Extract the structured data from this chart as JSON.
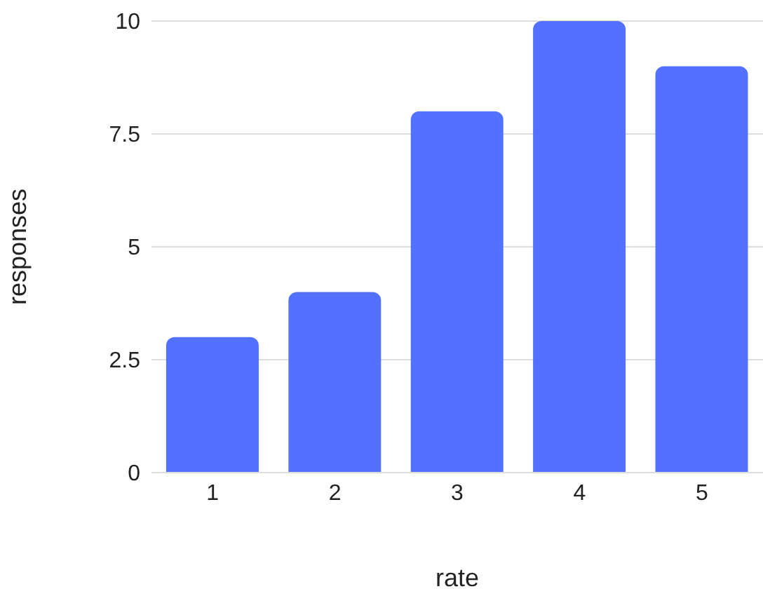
{
  "chart_data": {
    "type": "bar",
    "xlabel": "rate",
    "ylabel": "responses",
    "categories": [
      "1",
      "2",
      "3",
      "4",
      "5"
    ],
    "values": [
      3,
      4,
      8,
      10,
      9
    ],
    "color": "#5271ff",
    "ylim": [
      0,
      10
    ],
    "yticks": [
      0,
      2.5,
      5,
      7.5,
      10
    ],
    "grid": "y"
  }
}
